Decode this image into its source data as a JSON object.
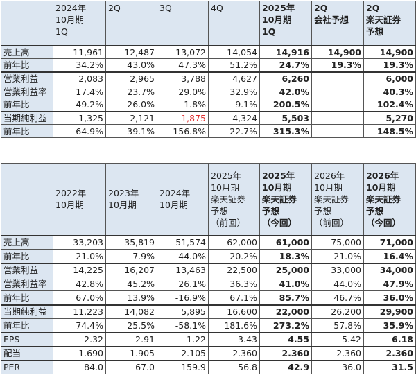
{
  "table1": {
    "headers": [
      "",
      "2024年10月期1Q",
      "2Q",
      "3Q",
      "4Q",
      "2025年10月期1Q",
      "2Q会社予想",
      "2Q楽天証券予想"
    ],
    "header_lines": [
      [
        ""
      ],
      [
        "2024年",
        "10月期",
        "1Q"
      ],
      [
        "2Q"
      ],
      [
        "3Q"
      ],
      [
        "4Q"
      ],
      [
        "2025年",
        "10月期",
        "1Q"
      ],
      [
        "2Q",
        "会社予想"
      ],
      [
        "2Q",
        "楽天証券",
        "予想"
      ]
    ],
    "rows": [
      {
        "label": "売上高",
        "values": [
          "11,961",
          "12,487",
          "13,072",
          "14,054",
          "14,916",
          "14,900",
          "14,900"
        ]
      },
      {
        "label": "前年比",
        "values": [
          "34.2%",
          "43.0%",
          "47.3%",
          "51.2%",
          "24.7%",
          "19.3%",
          "19.3%"
        ]
      },
      {
        "label": "営業利益",
        "values": [
          "2,083",
          "2,965",
          "3,788",
          "4,627",
          "6,260",
          "",
          "6,000"
        ]
      },
      {
        "label": "営業利益率",
        "values": [
          "17.4%",
          "23.7%",
          "29.0%",
          "32.9%",
          "42.0%",
          "",
          "40.3%"
        ]
      },
      {
        "label": "前年比",
        "values": [
          "-49.2%",
          "-26.0%",
          "-1.8%",
          "9.1%",
          "200.5%",
          "",
          "102.4%"
        ]
      },
      {
        "label": "当期純利益",
        "values": [
          "1,325",
          "2,121",
          "-1,875",
          "4,324",
          "5,503",
          "",
          "5,270"
        ]
      },
      {
        "label": "前年比",
        "values": [
          "-64.9%",
          "-39.1%",
          "-156.8%",
          "22.7%",
          "315.3%",
          "",
          "148.5%"
        ]
      }
    ],
    "negative_color": "#e03030"
  },
  "table2": {
    "headers": [
      "",
      "2022年10月期",
      "2023年10月期",
      "2024年10月期",
      "2025年10月期楽天証券予想（前回）",
      "2025年10月期楽天証券予想（今回）",
      "2026年10月期楽天証券予想（前回）",
      "2026年10月期楽天証券予想（今回）"
    ],
    "header_lines": [
      [
        ""
      ],
      [
        "2022年",
        "10月期"
      ],
      [
        "2023年",
        "10月期"
      ],
      [
        "2024年",
        "10月期"
      ],
      [
        "2025年",
        "10月期",
        "楽天証券",
        "予想",
        "（前回）"
      ],
      [
        "2025年",
        "10月期",
        "楽天証券",
        "予想",
        "（今回）"
      ],
      [
        "2026年",
        "10月期",
        "楽天証券",
        "予想",
        "（前回）"
      ],
      [
        "2026年",
        "10月期",
        "楽天証券",
        "予想",
        "（今回）"
      ]
    ],
    "rows": [
      {
        "label": "売上高",
        "values": [
          "33,203",
          "35,819",
          "51,574",
          "62,000",
          "61,000",
          "75,000",
          "71,000"
        ]
      },
      {
        "label": "前年比",
        "values": [
          "21.0%",
          "7.9%",
          "44.0%",
          "20.2%",
          "18.3%",
          "21.0%",
          "16.4%"
        ]
      },
      {
        "label": "営業利益",
        "values": [
          "14,225",
          "16,207",
          "13,463",
          "22,500",
          "25,000",
          "33,000",
          "34,000"
        ]
      },
      {
        "label": "営業利益率",
        "values": [
          "42.8%",
          "45.2%",
          "26.1%",
          "36.3%",
          "41.0%",
          "44.0%",
          "47.9%"
        ]
      },
      {
        "label": "前年比",
        "values": [
          "67.0%",
          "13.9%",
          "-16.9%",
          "67.1%",
          "85.7%",
          "46.7%",
          "36.0%"
        ]
      },
      {
        "label": "当期純利益",
        "values": [
          "11,223",
          "14,082",
          "5,895",
          "16,600",
          "22,000",
          "26,200",
          "29,900"
        ]
      },
      {
        "label": "前年比",
        "values": [
          "74.4%",
          "25.5%",
          "-58.1%",
          "181.6%",
          "273.2%",
          "57.8%",
          "35.9%"
        ]
      },
      {
        "label": "EPS",
        "values": [
          "2.32",
          "2.91",
          "1.22",
          "3.43",
          "4.55",
          "5.42",
          "6.18"
        ]
      },
      {
        "label": "配当",
        "values": [
          "1.690",
          "1.905",
          "2.105",
          "2.360",
          "2.360",
          "2.360",
          "2.360"
        ]
      },
      {
        "label": "PER",
        "values": [
          "84.0",
          "67.0",
          "159.9",
          "56.8",
          "42.9",
          "36.0",
          "31.5"
        ]
      }
    ]
  },
  "colors": {
    "header_bg": "#dce6f1",
    "border": "#555555"
  }
}
